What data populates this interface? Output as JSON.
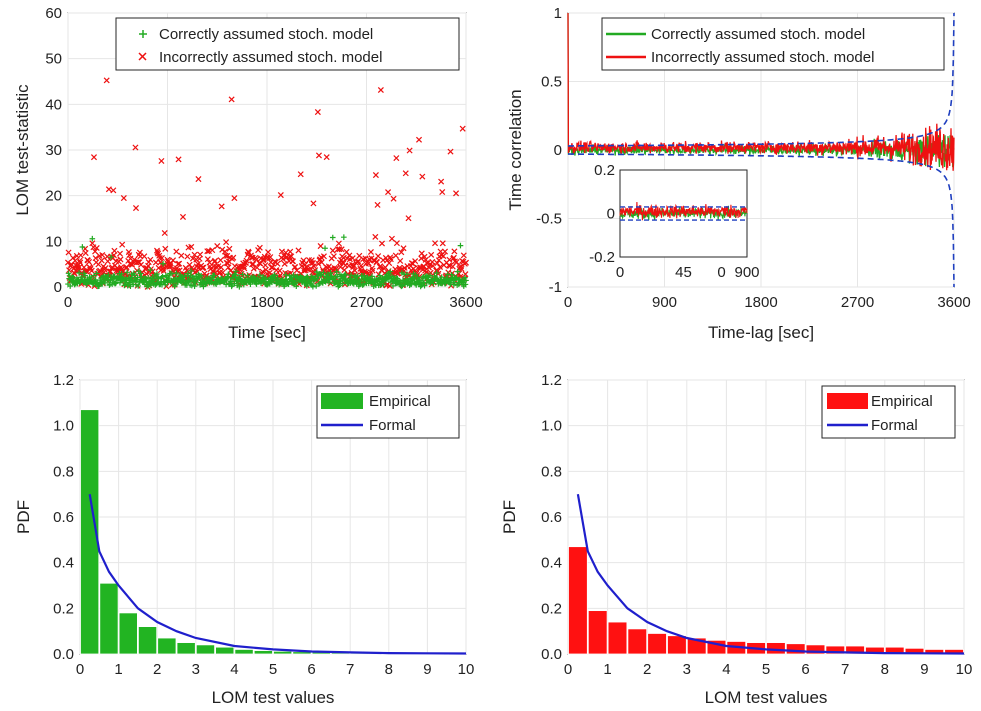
{
  "chart_data": [
    {
      "type": "scatter",
      "xlabel": "Time [sec]",
      "ylabel": "LOM test-statistic",
      "xlim": [
        0,
        3600
      ],
      "ylim": [
        0,
        60
      ],
      "xticks": [
        "0",
        "900",
        "1800",
        "2700",
        "3600"
      ],
      "yticks": [
        "0",
        "10",
        "20",
        "30",
        "40",
        "50",
        "60"
      ],
      "grid": true,
      "legend_position": "top-right",
      "series": [
        {
          "name": "Correctly assumed stoch. model",
          "marker": "+",
          "color": "#22aa22",
          "count": 3600,
          "typical_range": [
            0,
            7
          ],
          "max": 18
        },
        {
          "name": "Incorrectly assumed stoch. model",
          "marker": "x",
          "color": "#ee1111",
          "count": 3600,
          "typical_range": [
            0,
            30
          ],
          "max": 48
        }
      ]
    },
    {
      "type": "line",
      "xlabel": "Time-lag [sec]",
      "ylabel": "Time correlation",
      "xlim": [
        0,
        3600
      ],
      "ylim": [
        -1,
        1
      ],
      "xticks": [
        "0",
        "900",
        "1800",
        "2700",
        "3600"
      ],
      "yticks": [
        "-1",
        "-0.5",
        "0",
        "0.5",
        "1"
      ],
      "grid": true,
      "legend_position": "top-right",
      "series": [
        {
          "name": "Correctly assumed stoch. model",
          "color": "#22aa22",
          "value_at_zero": 1,
          "noise_level": 0.03
        },
        {
          "name": "Incorrectly assumed stoch. model",
          "color": "#ee1111",
          "value_at_zero": 1,
          "noise_level": 0.04,
          "offset": 0.02
        }
      ],
      "confidence_bounds": {
        "color": "#1f3fbf",
        "style": "dashed",
        "level_near_zero": 0.03
      },
      "inset": {
        "xlim": [
          0,
          90
        ],
        "ylim": [
          -0.2,
          0.2
        ],
        "xticks": [
          "0",
          "45",
          "0",
          "900"
        ],
        "yticks": [
          "-0.2",
          "0",
          "0.2"
        ]
      }
    },
    {
      "type": "bar",
      "xlabel": "LOM test values",
      "ylabel": "PDF",
      "xlim": [
        0,
        10
      ],
      "ylim": [
        0,
        1.2
      ],
      "xticks": [
        "0",
        "1",
        "2",
        "3",
        "4",
        "5",
        "6",
        "7",
        "8",
        "9",
        "10"
      ],
      "yticks": [
        "0.0",
        "0.2",
        "0.4",
        "0.6",
        "0.8",
        "1.0",
        "1.2"
      ],
      "grid": true,
      "legend_position": "top-right",
      "bin_width": 0.5,
      "bin_starts": [
        0,
        0.5,
        1,
        1.5,
        2,
        2.5,
        3,
        3.5,
        4,
        4.5,
        5,
        5.5,
        6,
        6.5,
        7,
        7.5,
        8,
        8.5,
        9,
        9.5
      ],
      "series": [
        {
          "name": "Empirical",
          "color": "#22b422",
          "values": [
            1.07,
            0.31,
            0.18,
            0.12,
            0.07,
            0.05,
            0.04,
            0.03,
            0.02,
            0.015,
            0.012,
            0.01,
            0.008,
            0.006,
            0.005,
            0.004,
            0.003,
            0.003,
            0.002,
            0.002
          ]
        },
        {
          "name": "Formal",
          "color": "#1f1fcc",
          "line": true,
          "x": [
            0.25,
            0.5,
            0.75,
            1,
            1.5,
            2,
            2.5,
            3,
            4,
            5,
            6,
            7,
            8,
            9,
            10
          ],
          "y": [
            0.7,
            0.45,
            0.36,
            0.3,
            0.2,
            0.14,
            0.1,
            0.07,
            0.035,
            0.02,
            0.011,
            0.007,
            0.004,
            0.003,
            0.002
          ]
        }
      ]
    },
    {
      "type": "bar",
      "xlabel": "LOM test values",
      "ylabel": "PDF",
      "xlim": [
        0,
        10
      ],
      "ylim": [
        0,
        1.2
      ],
      "xticks": [
        "0",
        "1",
        "2",
        "3",
        "4",
        "5",
        "6",
        "7",
        "8",
        "9",
        "10"
      ],
      "yticks": [
        "0.0",
        "0.2",
        "0.4",
        "0.6",
        "0.8",
        "1.0",
        "1.2"
      ],
      "grid": true,
      "legend_position": "top-right",
      "bin_width": 0.5,
      "bin_starts": [
        0,
        0.5,
        1,
        1.5,
        2,
        2.5,
        3,
        3.5,
        4,
        4.5,
        5,
        5.5,
        6,
        6.5,
        7,
        7.5,
        8,
        8.5,
        9,
        9.5
      ],
      "series": [
        {
          "name": "Empirical",
          "color": "#ff1111",
          "values": [
            0.47,
            0.19,
            0.14,
            0.11,
            0.09,
            0.08,
            0.07,
            0.06,
            0.055,
            0.05,
            0.05,
            0.045,
            0.04,
            0.035,
            0.035,
            0.03,
            0.03,
            0.025,
            0.02,
            0.02
          ]
        },
        {
          "name": "Formal",
          "color": "#1f1fcc",
          "line": true,
          "x": [
            0.25,
            0.5,
            0.75,
            1,
            1.5,
            2,
            2.5,
            3,
            4,
            5,
            6,
            7,
            8,
            9,
            10
          ],
          "y": [
            0.7,
            0.45,
            0.36,
            0.3,
            0.2,
            0.14,
            0.1,
            0.07,
            0.035,
            0.02,
            0.011,
            0.007,
            0.004,
            0.003,
            0.002
          ]
        }
      ]
    }
  ]
}
